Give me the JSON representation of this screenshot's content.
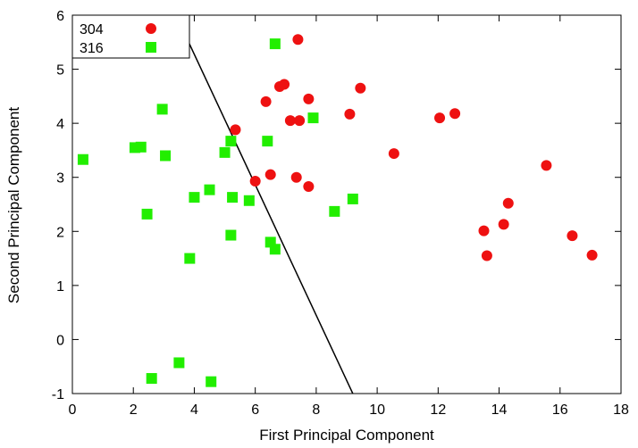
{
  "chart_data": {
    "type": "scatter",
    "title": "",
    "xlabel": "First Principal Component",
    "ylabel": "Second Principal Component",
    "xlim": [
      0,
      18
    ],
    "ylim": [
      -1,
      6
    ],
    "xticks": [
      "0",
      "2",
      "4",
      "6",
      "8",
      "10",
      "12",
      "14",
      "16",
      "18"
    ],
    "yticks": [
      "-1",
      "0",
      "1",
      "2",
      "3",
      "4",
      "5",
      "6"
    ],
    "legend_position": "top-left",
    "grid": false,
    "series": [
      {
        "name": "304",
        "marker": "circle",
        "color": "#ee1111",
        "points": [
          [
            7.4,
            5.55
          ],
          [
            6.8,
            4.68
          ],
          [
            6.95,
            4.72
          ],
          [
            9.45,
            4.65
          ],
          [
            7.75,
            4.45
          ],
          [
            6.35,
            4.4
          ],
          [
            9.1,
            4.17
          ],
          [
            12.55,
            4.18
          ],
          [
            12.05,
            4.1
          ],
          [
            7.15,
            4.05
          ],
          [
            7.45,
            4.05
          ],
          [
            5.35,
            3.88
          ],
          [
            10.55,
            3.44
          ],
          [
            15.55,
            3.22
          ],
          [
            6.5,
            3.05
          ],
          [
            7.35,
            3.0
          ],
          [
            6.0,
            2.93
          ],
          [
            7.75,
            2.83
          ],
          [
            14.3,
            2.52
          ],
          [
            14.15,
            2.13
          ],
          [
            13.5,
            2.01
          ],
          [
            16.4,
            1.92
          ],
          [
            13.6,
            1.55
          ],
          [
            17.05,
            1.56
          ]
        ]
      },
      {
        "name": "316",
        "marker": "square",
        "color": "#22ee00",
        "points": [
          [
            6.65,
            5.47
          ],
          [
            2.95,
            4.26
          ],
          [
            7.9,
            4.1
          ],
          [
            5.2,
            3.67
          ],
          [
            6.4,
            3.67
          ],
          [
            2.05,
            3.55
          ],
          [
            2.25,
            3.56
          ],
          [
            5.0,
            3.46
          ],
          [
            3.05,
            3.4
          ],
          [
            0.35,
            3.33
          ],
          [
            4.5,
            2.77
          ],
          [
            4.0,
            2.63
          ],
          [
            5.25,
            2.63
          ],
          [
            5.8,
            2.57
          ],
          [
            9.2,
            2.6
          ],
          [
            8.6,
            2.37
          ],
          [
            2.45,
            2.32
          ],
          [
            5.2,
            1.93
          ],
          [
            6.5,
            1.8
          ],
          [
            6.65,
            1.67
          ],
          [
            3.85,
            1.5
          ],
          [
            3.5,
            -0.43
          ],
          [
            2.6,
            -0.72
          ],
          [
            4.55,
            -0.78
          ]
        ]
      }
    ],
    "lines": [
      {
        "name": "separator",
        "color": "#000000",
        "points": [
          [
            3.4,
            6.0
          ],
          [
            9.2,
            -1.0
          ]
        ]
      }
    ]
  }
}
